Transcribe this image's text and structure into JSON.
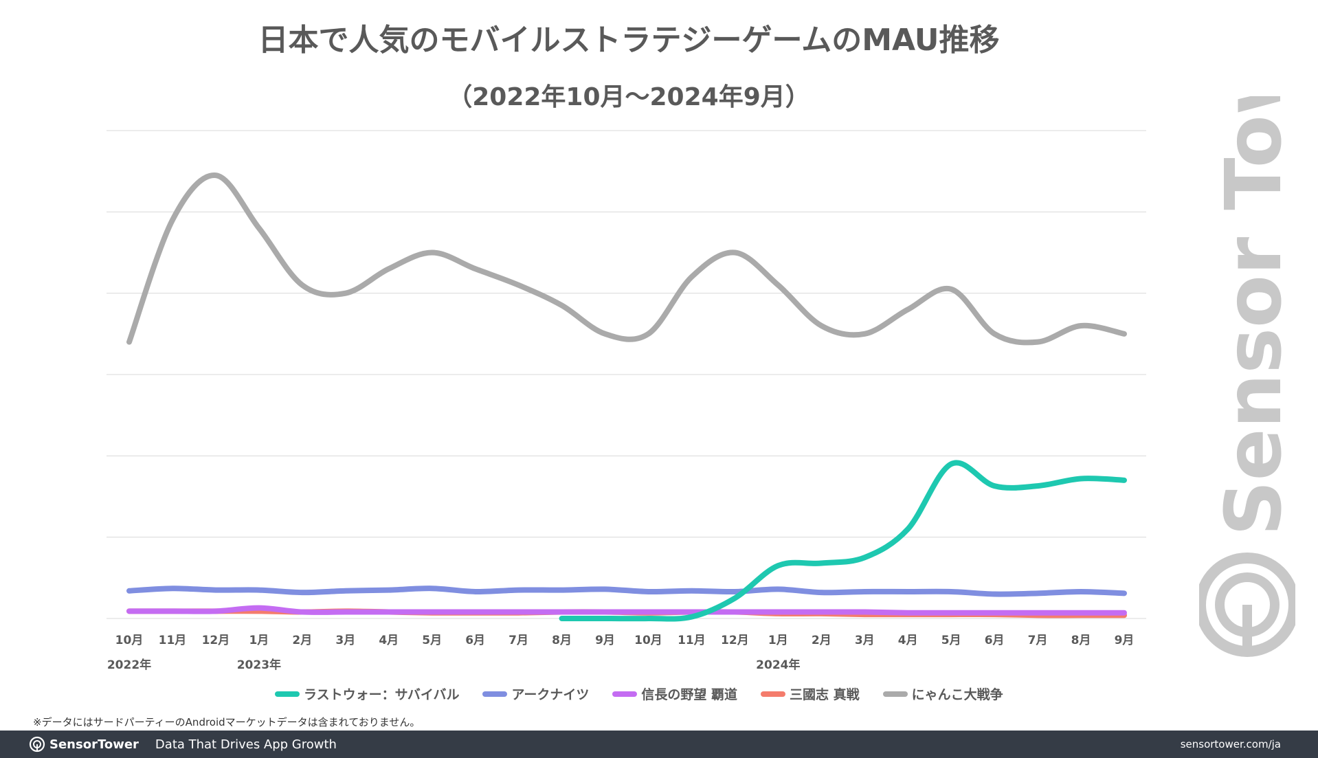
{
  "header": {
    "title": "日本で人気のモバイルストラテジーゲームのMAU推移",
    "subtitle": "（2022年10月〜2024年9月）"
  },
  "chart_data": {
    "type": "line",
    "title": "日本で人気のモバイルストラテジーゲームのMAU推移",
    "subtitle": "（2022年10月〜2024年9月）",
    "categories": [
      "10月",
      "11月",
      "12月",
      "1月",
      "2月",
      "3月",
      "4月",
      "5月",
      "6月",
      "7月",
      "8月",
      "9月",
      "10月",
      "11月",
      "12月",
      "1月",
      "2月",
      "3月",
      "4月",
      "5月",
      "6月",
      "7月",
      "8月",
      "9月"
    ],
    "year_labels": [
      {
        "index": 0,
        "label": "2022年"
      },
      {
        "index": 3,
        "label": "2023年"
      },
      {
        "index": 15,
        "label": "2024年"
      }
    ],
    "ylim": [
      0,
      6
    ],
    "y_gridlines": [
      0,
      1,
      2,
      3,
      4,
      5,
      6
    ],
    "y_tick_labels_shown": false,
    "legend_position": "bottom",
    "series": [
      {
        "name": "ラストウォー：サバイバル",
        "color": "#1ec8b0",
        "values": [
          null,
          null,
          null,
          null,
          null,
          null,
          null,
          null,
          null,
          null,
          0,
          0,
          0,
          0.02,
          0.25,
          0.65,
          0.68,
          0.75,
          1.1,
          1.9,
          1.63,
          1.63,
          1.72,
          1.7
        ]
      },
      {
        "name": "アークナイツ",
        "color": "#7f8ee0",
        "values": [
          0.34,
          0.37,
          0.35,
          0.35,
          0.32,
          0.34,
          0.35,
          0.37,
          0.33,
          0.35,
          0.35,
          0.36,
          0.33,
          0.34,
          0.33,
          0.36,
          0.32,
          0.33,
          0.33,
          0.33,
          0.3,
          0.31,
          0.33,
          0.31
        ]
      },
      {
        "name": "信長の野望 覇道",
        "color": "#c46cf2",
        "values": [
          0.09,
          0.09,
          0.09,
          0.13,
          0.08,
          0.08,
          0.08,
          0.08,
          0.08,
          0.08,
          0.08,
          0.08,
          0.08,
          0.08,
          0.08,
          0.08,
          0.08,
          0.08,
          0.07,
          0.07,
          0.07,
          0.07,
          0.07,
          0.07
        ]
      },
      {
        "name": "三國志 真戦",
        "color": "#f47c6c",
        "values": [
          0.09,
          0.09,
          0.09,
          0.09,
          0.08,
          0.09,
          0.08,
          0.07,
          0.07,
          0.07,
          0.08,
          0.08,
          0.07,
          0.08,
          0.08,
          0.06,
          0.06,
          0.05,
          0.05,
          0.05,
          0.05,
          0.04,
          0.04,
          0.04
        ]
      },
      {
        "name": "にゃんこ大戦争",
        "color": "#aaaaaa",
        "values": [
          3.4,
          4.9,
          5.45,
          4.8,
          4.1,
          4.0,
          4.3,
          4.5,
          4.3,
          4.1,
          3.85,
          3.5,
          3.5,
          4.2,
          4.5,
          4.1,
          3.6,
          3.5,
          3.8,
          4.05,
          3.5,
          3.4,
          3.6,
          3.5
        ]
      }
    ]
  },
  "footnote": "※データにはサードパーティーのAndroidマーケットデータは含まれておりません。",
  "watermark": {
    "text": "Sensor Tower",
    "icon": "sensor-tower-logo-icon"
  },
  "footer": {
    "brand": "SensorTower",
    "brand_icon": "sensor-tower-logo-icon",
    "tagline": "Data That Drives App Growth",
    "site": "sensortower.com/ja"
  }
}
